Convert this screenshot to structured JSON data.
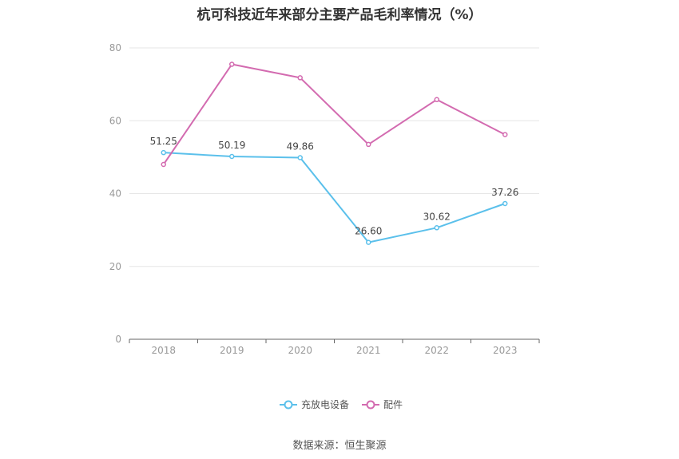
{
  "title": "杭可科技近年来部分主要产品毛利率情况（%）",
  "source": "数据来源：恒生聚源",
  "colors": {
    "series1": "#5bc0eb",
    "series2": "#d36bb0",
    "grid": "#e6e6e6",
    "axis": "#666666"
  },
  "chart_data": {
    "type": "line",
    "title": "杭可科技近年来部分主要产品毛利率情况（%）",
    "x": [
      "2018",
      "2019",
      "2020",
      "2021",
      "2022",
      "2023"
    ],
    "ylim": [
      0,
      80
    ],
    "yticks": [
      0,
      20,
      40,
      60,
      80
    ],
    "grid": true,
    "legend": "bottom-center",
    "series": [
      {
        "name": "充放电设备",
        "values": [
          51.25,
          50.19,
          49.86,
          26.6,
          30.62,
          37.26
        ],
        "labels": [
          "51.25",
          "50.19",
          "49.86",
          "26.60",
          "30.62",
          "37.26"
        ]
      },
      {
        "name": "配件",
        "values": [
          48.0,
          75.5,
          71.8,
          53.5,
          65.8,
          56.2
        ]
      }
    ]
  }
}
